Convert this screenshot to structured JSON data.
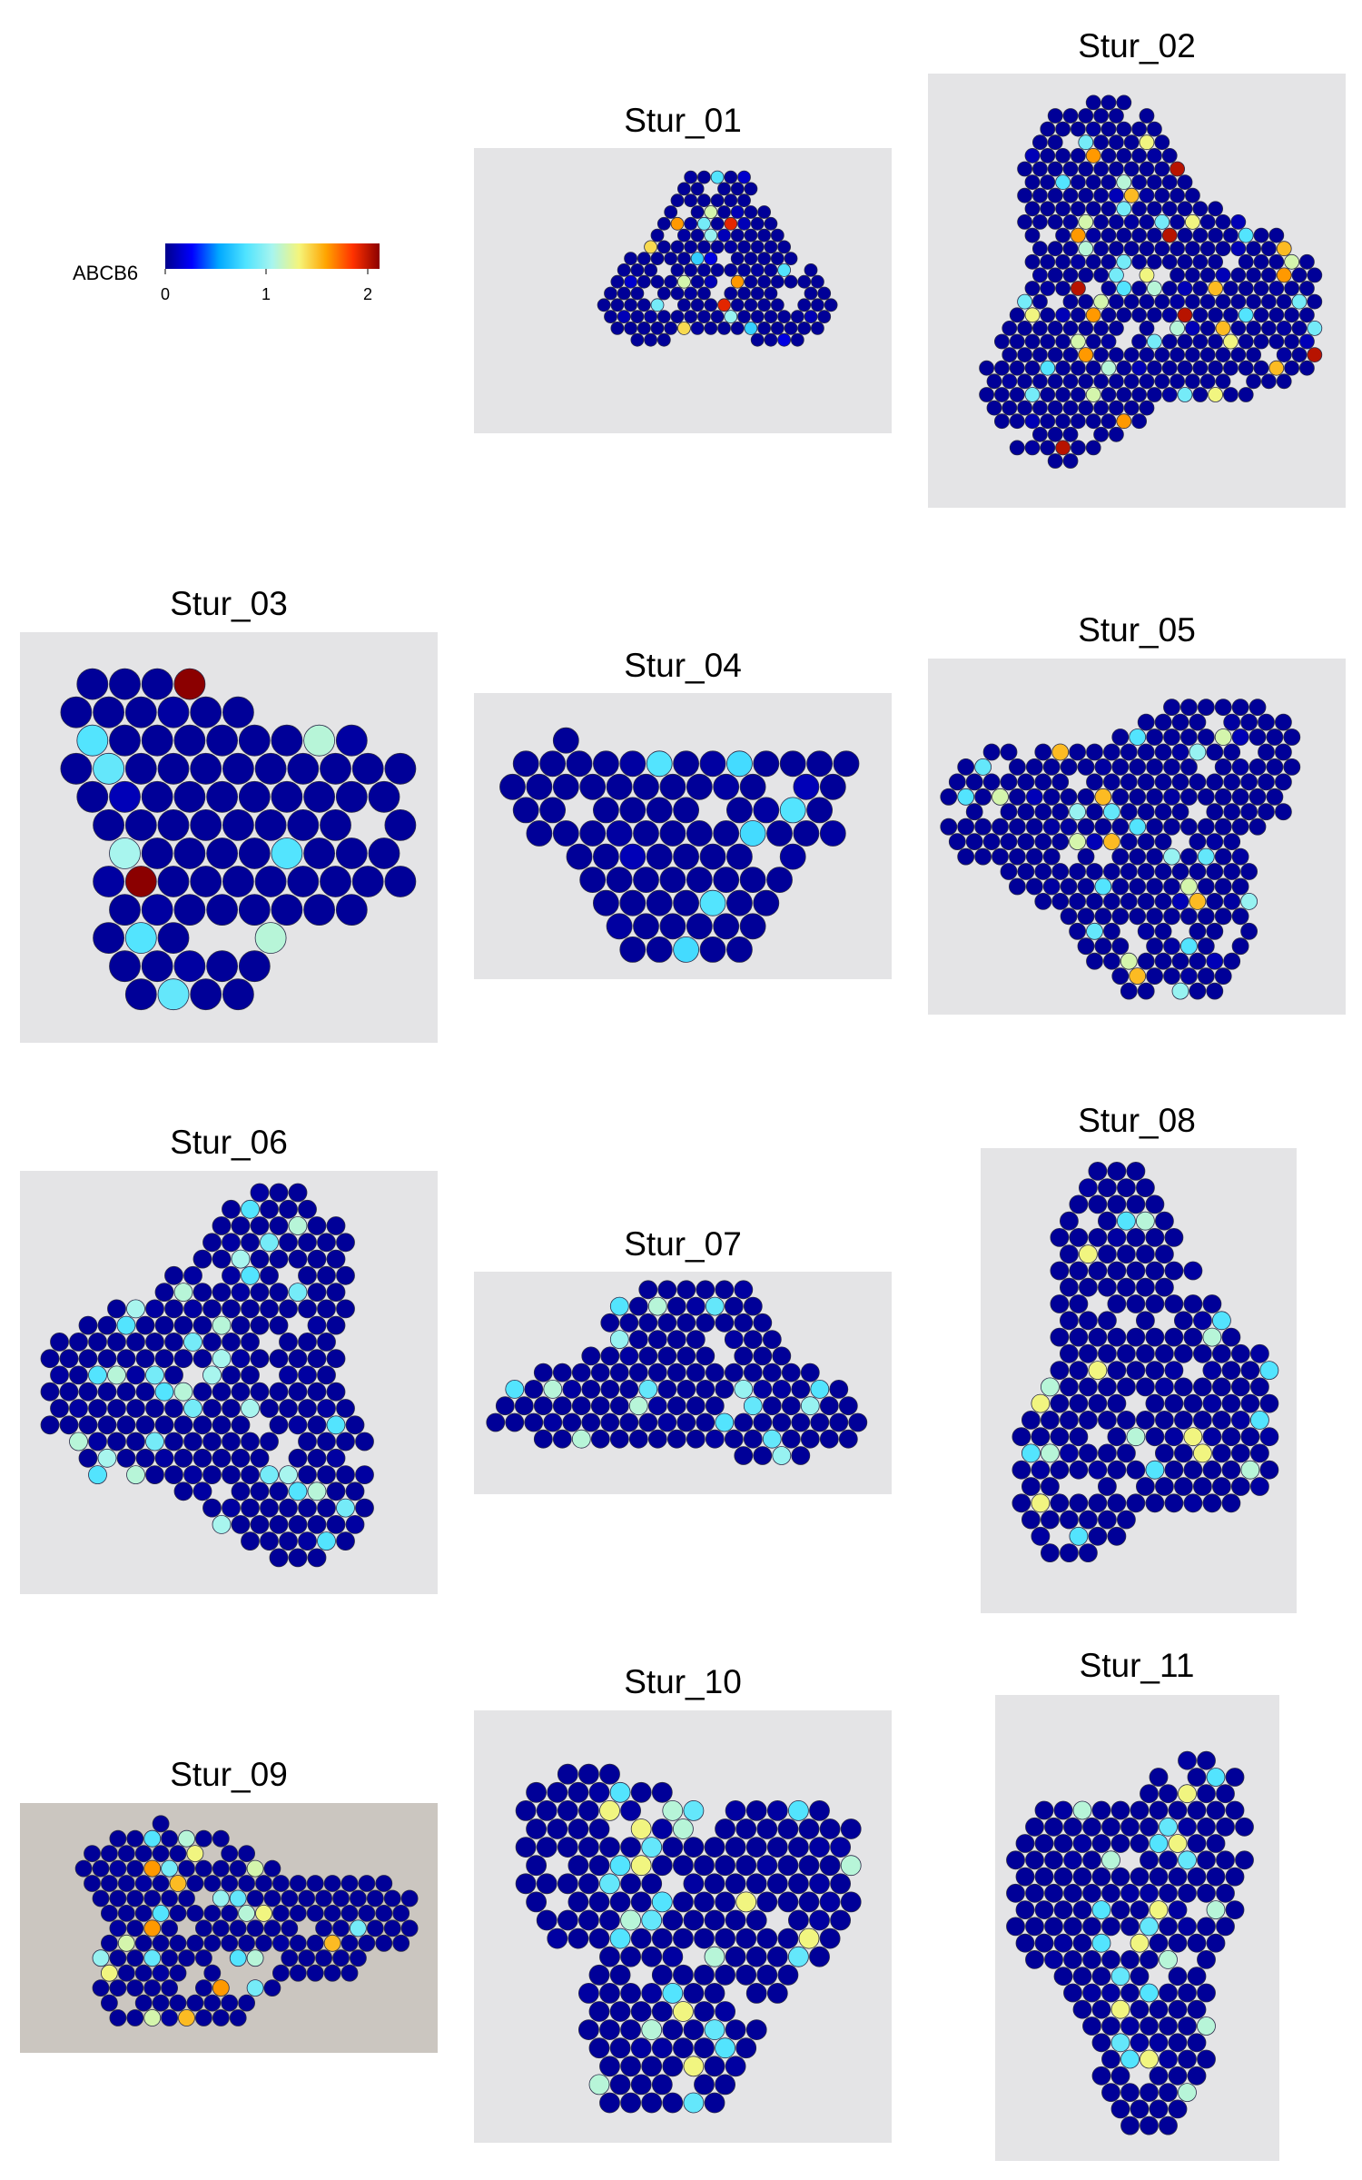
{
  "legend": {
    "gene": "ABCB6",
    "ticks": [
      "0",
      "1",
      "2"
    ],
    "min": 0,
    "max": 2.1,
    "colors": [
      "#00008b",
      "#0000ff",
      "#00a8ff",
      "#4fe3ff",
      "#a8f5ee",
      "#f5f57a",
      "#ffa400",
      "#ff3200",
      "#8b0000"
    ]
  },
  "colors": {
    "tissue": "#e4e4e6",
    "tissue_stain": "#5a3e8f",
    "spot_outline": "#2a2a48"
  },
  "chart_data": [
    {
      "type": "scatter",
      "title": "Stur_01",
      "xlim": [
        0,
        100
      ],
      "ylim": [
        0,
        100
      ],
      "description_of_values": "spot expression level",
      "values": [
        0.05,
        0.8,
        0.15,
        1.2,
        0.1,
        1.6,
        0.05,
        0.9,
        1.9,
        0.1,
        0.05,
        1.0,
        0.1,
        1.4,
        0.05,
        0.7,
        0.2
      ]
    },
    {
      "type": "scatter",
      "title": "Stur_02",
      "xlim": [
        0,
        100
      ],
      "ylim": [
        0,
        100
      ],
      "values": [
        0.05,
        0.9,
        1.3,
        0.1,
        1.6,
        0.05,
        2.0,
        0.8,
        1.1,
        0.1,
        1.5,
        0.05,
        0.9,
        1.2
      ]
    },
    {
      "type": "scatter",
      "title": "Stur_03",
      "xlim": [
        0,
        100
      ],
      "ylim": [
        0,
        100
      ],
      "values": [
        2.1,
        0.05,
        0.8,
        1.1,
        0.05,
        0.85,
        0.1,
        1.05,
        0.8,
        0.05
      ]
    },
    {
      "type": "scatter",
      "title": "Stur_04",
      "xlim": [
        0,
        100
      ],
      "ylim": [
        0,
        100
      ],
      "values": [
        0.05,
        0.8,
        0.05,
        0.75,
        0.05,
        0.1
      ]
    },
    {
      "type": "scatter",
      "title": "Stur_05",
      "xlim": [
        0,
        100
      ],
      "ylim": [
        0,
        100
      ],
      "values": [
        0.05,
        0.8,
        1.2,
        0.1,
        1.5,
        0.05,
        1.0,
        0.85,
        0.05
      ]
    },
    {
      "type": "scatter",
      "title": "Stur_06",
      "xlim": [
        0,
        100
      ],
      "ylim": [
        0,
        100
      ],
      "values": [
        0.05,
        0.8,
        1.1,
        0.05,
        0.9,
        1.05,
        0.05
      ]
    },
    {
      "type": "scatter",
      "title": "Stur_07",
      "xlim": [
        0,
        100
      ],
      "ylim": [
        0,
        100
      ],
      "values": [
        0.05,
        0.8,
        1.1,
        0.05,
        0.85,
        1.0,
        0.05
      ]
    },
    {
      "type": "scatter",
      "title": "Stur_08",
      "xlim": [
        0,
        100
      ],
      "ylim": [
        0,
        100
      ],
      "values": [
        0.05,
        0.8,
        1.1,
        0.05,
        1.3,
        0.05
      ]
    },
    {
      "type": "scatter",
      "title": "Stur_09",
      "xlim": [
        0,
        100
      ],
      "ylim": [
        0,
        100
      ],
      "values": [
        0.8,
        1.1,
        1.3,
        0.05,
        1.6,
        0.9,
        1.2,
        0.05,
        1.5,
        1.0,
        0.85
      ]
    },
    {
      "type": "scatter",
      "title": "Stur_10",
      "xlim": [
        0,
        100
      ],
      "ylim": [
        0,
        100
      ],
      "values": [
        0.05,
        0.8,
        1.3,
        0.05,
        1.1,
        0.85,
        0.05
      ]
    },
    {
      "type": "scatter",
      "title": "Stur_11",
      "xlim": [
        0,
        100
      ],
      "ylim": [
        0,
        100
      ],
      "values": [
        0.05,
        0.8,
        1.3,
        0.05,
        1.1,
        0.85,
        0.05
      ]
    }
  ]
}
